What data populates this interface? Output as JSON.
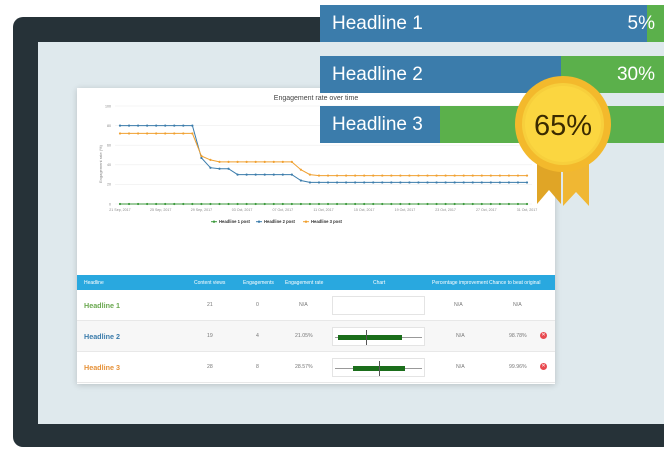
{
  "banners": [
    {
      "label": "Headline 1",
      "percent": "5%",
      "fill": 0.05
    },
    {
      "label": "Headline 2",
      "percent": "30%",
      "fill": 0.3
    },
    {
      "label": "Headline 3",
      "percent": "",
      "fill": 0.65
    }
  ],
  "medal": {
    "value": "65%"
  },
  "colors": {
    "banner_blue": "#3b7cab",
    "banner_green": "#5bb04b",
    "headline1": "#6aa84f",
    "headline2": "#3b7cab",
    "headline3": "#e69138",
    "table_header": "#29a8df",
    "medal_gold": "#f6c531"
  },
  "chart_data": {
    "type": "line",
    "title": "Engagement rate over time",
    "ylabel": "Engagement rate (%)",
    "ylim": [
      0,
      100
    ],
    "yticks": [
      "0",
      "20",
      "40",
      "60",
      "80",
      "100"
    ],
    "xticks": [
      "21 Sep, 2017",
      "25 Sep, 2017",
      "29 Sep, 2017",
      "03 Oct, 2017",
      "07 Oct, 2017",
      "11 Oct, 2017",
      "15 Oct, 2017",
      "19 Oct, 2017",
      "23 Oct, 2017",
      "27 Oct, 2017",
      "31 Oct, 2017"
    ],
    "legend_position": "bottom",
    "grid": true,
    "series": [
      {
        "name": "Headline 1 post",
        "color": "#3d9a3d",
        "values": [
          0,
          0,
          0,
          0,
          0,
          0,
          0,
          0,
          0,
          0,
          0,
          0,
          0,
          0,
          0,
          0,
          0,
          0,
          0,
          0,
          0,
          0,
          0,
          0,
          0,
          0,
          0,
          0,
          0,
          0,
          0,
          0,
          0,
          0,
          0,
          0,
          0,
          0,
          0,
          0,
          0,
          0,
          0,
          0,
          0,
          0
        ]
      },
      {
        "name": "Headline 2 post",
        "color": "#3b7cab",
        "values": [
          80,
          80,
          80,
          80,
          80,
          80,
          80,
          80,
          80,
          47,
          37,
          36,
          36,
          30,
          30,
          30,
          30,
          30,
          30,
          30,
          24,
          22,
          22,
          22,
          22,
          22,
          22,
          22,
          22,
          22,
          22,
          22,
          22,
          22,
          22,
          22,
          22,
          22,
          22,
          22,
          22,
          22,
          22,
          22,
          22,
          22
        ]
      },
      {
        "name": "Headline 3 post",
        "color": "#f0a030",
        "values": [
          72,
          72,
          72,
          72,
          72,
          72,
          72,
          72,
          72,
          49,
          45,
          43,
          43,
          43,
          43,
          43,
          43,
          43,
          43,
          43,
          35,
          30,
          29,
          29,
          29,
          29,
          29,
          29,
          29,
          29,
          29,
          29,
          29,
          29,
          29,
          29,
          29,
          29,
          29,
          29,
          29,
          29,
          29,
          29,
          29,
          29
        ]
      }
    ]
  },
  "table": {
    "headers": [
      "Headline",
      "Content views",
      "Engagements",
      "Engagement rate",
      "Chart",
      "Percentage improvement",
      "Chance to beat original"
    ],
    "rows": [
      {
        "name": "Headline 1",
        "views": "21",
        "engagements": "0",
        "rate": "N/A",
        "improvement": "N/A",
        "chance": "N/A",
        "has_ci": false,
        "removable": false
      },
      {
        "name": "Headline 2",
        "views": "19",
        "engagements": "4",
        "rate": "21.05%",
        "improvement": "N/A",
        "chance": "98.78%",
        "has_ci": true,
        "ci": [
          0.06,
          0.76
        ],
        "ci_mark": 0.36,
        "removable": true
      },
      {
        "name": "Headline 3",
        "views": "28",
        "engagements": "8",
        "rate": "28.57%",
        "improvement": "N/A",
        "chance": "99.96%",
        "has_ci": true,
        "ci": [
          0.22,
          0.79
        ],
        "ci_mark": 0.5,
        "removable": true
      }
    ]
  }
}
